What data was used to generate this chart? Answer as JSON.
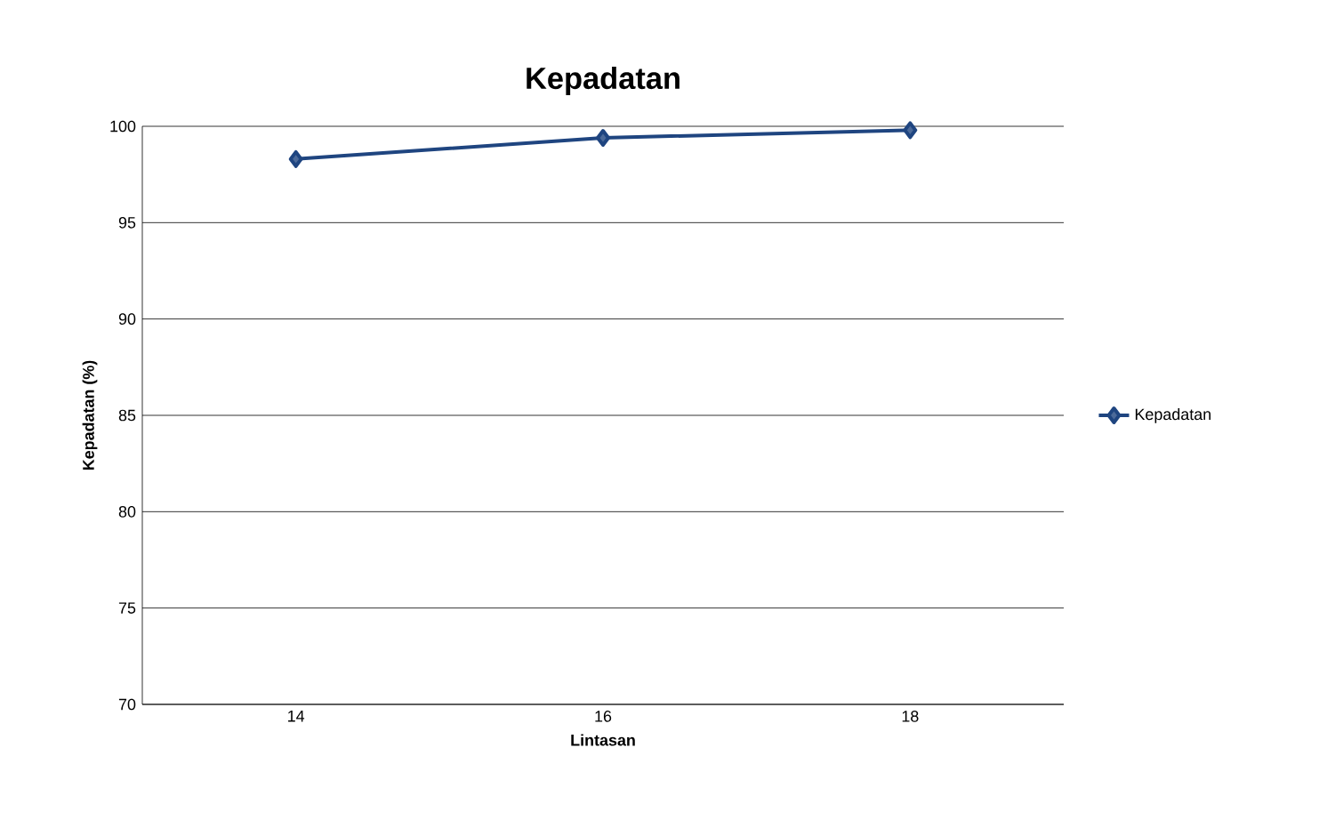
{
  "chart_data": {
    "type": "line",
    "title": "Kepadatan",
    "xlabel": "Lintasan",
    "ylabel": "Kepadatan (%)",
    "categories": [
      "14",
      "16",
      "18"
    ],
    "series": [
      {
        "name": "Kepadatan",
        "color": "#1f4580",
        "values": [
          98.3,
          99.4,
          99.8
        ]
      }
    ],
    "ylim": [
      70,
      100
    ],
    "yticks": [
      70,
      75,
      80,
      85,
      90,
      95,
      100
    ],
    "grid": "y",
    "legend": "right",
    "marker": "diamond",
    "line_style": "solid"
  }
}
